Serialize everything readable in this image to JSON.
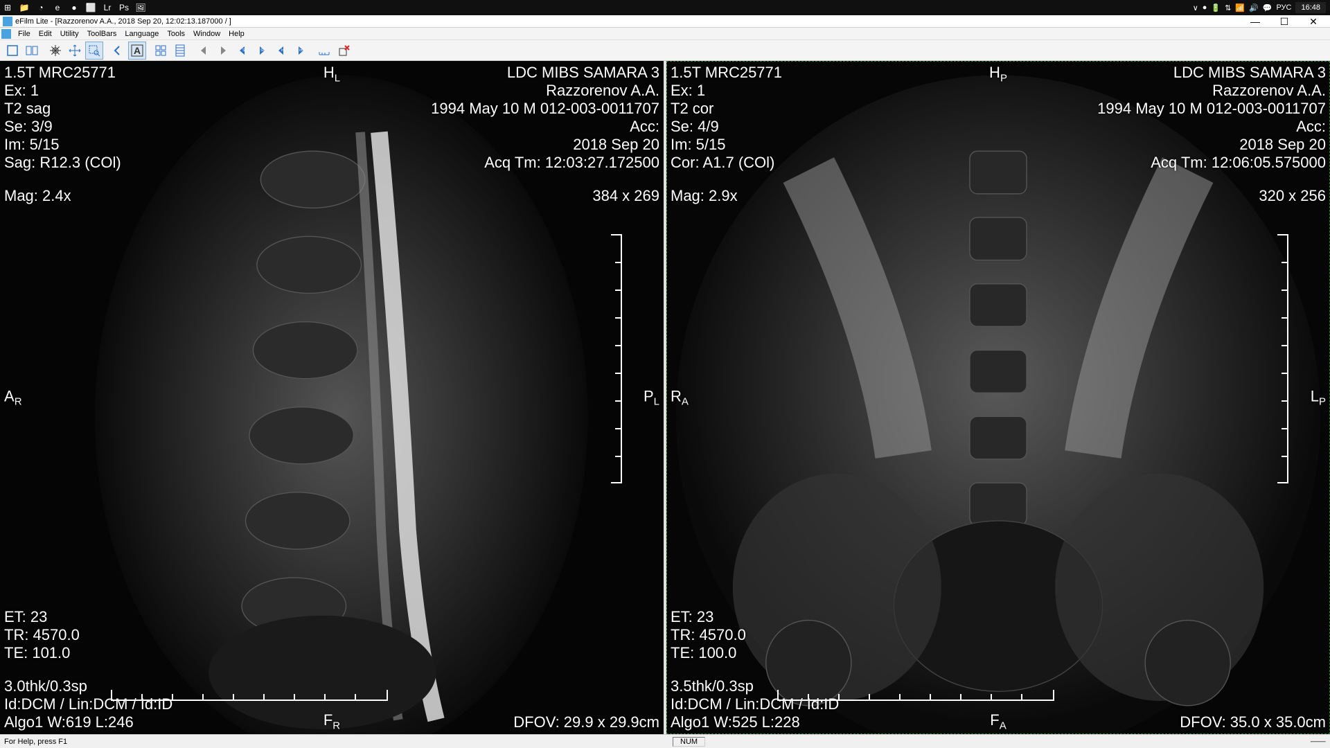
{
  "taskbar": {
    "icons": [
      "⊞",
      "📁",
      "◔",
      "e",
      "●",
      "⬜",
      "Lr",
      "Ps",
      "🖼"
    ],
    "tray": [
      "∨",
      "●",
      "🔋",
      "⇅",
      "📶",
      "🔊",
      "💬"
    ],
    "lang": "РУС",
    "clock": "16:48"
  },
  "window": {
    "title": "eFilm Lite - [Razzorenov A.A., 2018 Sep 20, 12:02:13.187000  /  ]",
    "menus": [
      "File",
      "Edit",
      "Utility",
      "ToolBars",
      "Language",
      "Tools",
      "Window",
      "Help"
    ]
  },
  "toolbar": {
    "buttons": [
      {
        "name": "layout-1",
        "svg": "rect"
      },
      {
        "name": "layout-2",
        "svg": "rects"
      },
      {
        "name": "brightness",
        "svg": "sun"
      },
      {
        "name": "pan",
        "svg": "move"
      },
      {
        "name": "zoom-region",
        "svg": "zoomsel",
        "sel": true
      },
      {
        "name": "back",
        "svg": "back"
      },
      {
        "name": "annotate-text",
        "svg": "A",
        "sel": true
      },
      {
        "name": "grid-4",
        "svg": "grid"
      },
      {
        "name": "film",
        "svg": "film"
      },
      {
        "name": "prev-gray",
        "svg": "prevg"
      },
      {
        "name": "next-gray",
        "svg": "nextg"
      },
      {
        "name": "se-prev",
        "svg": "seprev"
      },
      {
        "name": "se-next",
        "svg": "senext"
      },
      {
        "name": "im-prev",
        "svg": "imprev"
      },
      {
        "name": "im-next",
        "svg": "imnext"
      },
      {
        "name": "measure",
        "svg": "ruler"
      },
      {
        "name": "delete",
        "svg": "delx"
      }
    ]
  },
  "panels": [
    {
      "selected": false,
      "tl": [
        "1.5T MRC25771",
        "Ex: 1",
        "T2 sag",
        "Se: 3/9",
        "Im: 5/15",
        "Sag: R12.3 (COl)",
        "",
        "Mag: 2.4x"
      ],
      "tr": [
        "LDC MIBS SAMARA 3",
        "Razzorenov A.A.",
        "1994 May 10   M   012-003-0011707",
        "Acc:",
        "2018 Sep 20",
        "Acq Tm: 12:03:27.172500",
        "",
        "384 x 269"
      ],
      "bl": [
        "ET: 23",
        "TR: 4570.0",
        "TE: 101.0",
        "",
        "3.0thk/0.3sp",
        "Id:DCM / Lin:DCM / Id:ID",
        "Algo1 W:619  L:246"
      ],
      "br": [
        "DFOV: 29.9 x 29.9cm"
      ],
      "topc": "H",
      "topc_sub": "L",
      "botc": "F",
      "botc_sub": "R",
      "midl": "A",
      "midl_sub": "R",
      "midr": "P",
      "midr_sub": "L"
    },
    {
      "selected": true,
      "tl": [
        "1.5T MRC25771",
        "Ex: 1",
        "T2 cor",
        "Se: 4/9",
        "Im: 5/15",
        "Cor: A1.7 (COl)",
        "",
        "Mag: 2.9x"
      ],
      "tr": [
        "LDC MIBS SAMARA 3",
        "Razzorenov A.A.",
        "1994 May 10   M   012-003-0011707",
        "Acc:",
        "2018 Sep 20",
        "Acq Tm: 12:06:05.575000",
        "",
        "320 x 256"
      ],
      "bl": [
        "ET: 23",
        "TR: 4570.0",
        "TE: 100.0",
        "",
        "3.5thk/0.3sp",
        "Id:DCM / Lin:DCM / Id:ID",
        "Algo1 W:525  L:228"
      ],
      "br": [
        "DFOV: 35.0 x 35.0cm"
      ],
      "topc": "H",
      "topc_sub": "P",
      "botc": "F",
      "botc_sub": "A",
      "midl": "R",
      "midl_sub": "A",
      "midr": "L",
      "midr_sub": "P"
    }
  ],
  "status": {
    "left": "For Help, press F1",
    "right": "NUM"
  },
  "colors": {
    "overlay": "#ffffff",
    "toolbar_blue": "#2a6fc9",
    "toolbar_sel": "#d6e6f5"
  }
}
